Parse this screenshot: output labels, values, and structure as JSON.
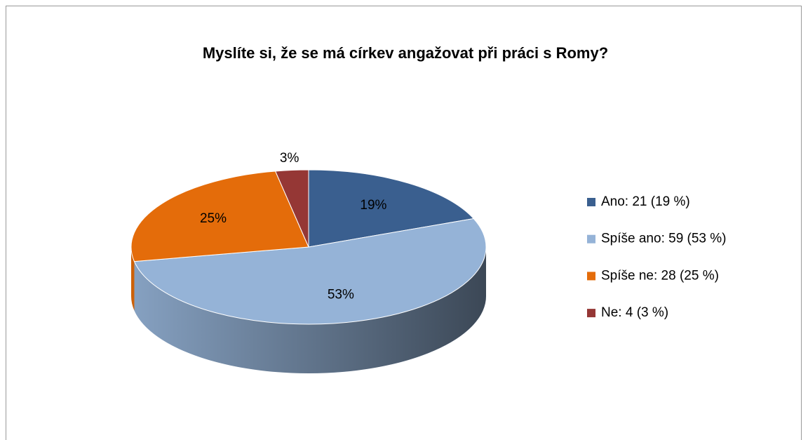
{
  "chart_data": {
    "type": "pie3d",
    "title": "Myslíte si, že se má církev angažovat při práci s Romy?",
    "categories": [
      "Ano: 21 (19 %)",
      "Spíše ano: 59 (53 %)",
      "Spíše ne: 28 (25 %)",
      "Ne: 4 (3 %)"
    ],
    "values": [
      19,
      53,
      25,
      3
    ],
    "value_labels": [
      "19%",
      "53%",
      "25%",
      "3%"
    ],
    "colors": [
      "#3a5f8f",
      "#95b3d7",
      "#e46c0a",
      "#953735"
    ],
    "legend": "right"
  }
}
